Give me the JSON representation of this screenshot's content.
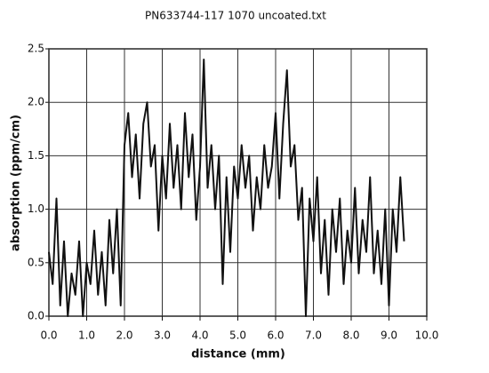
{
  "chart_data": {
    "type": "line",
    "title": "PN633744-117 1070 uncoated.txt",
    "x_label": "distance (mm)",
    "y_label": "absorption (ppm/cm)",
    "x": [
      0,
      0.1,
      0.2,
      0.3,
      0.4,
      0.5,
      0.6,
      0.7,
      0.8,
      0.9,
      1,
      1.1,
      1.2,
      1.3,
      1.4,
      1.5,
      1.6,
      1.7,
      1.8,
      1.9,
      2,
      2.1,
      2.2,
      2.3,
      2.4,
      2.5,
      2.6,
      2.7,
      2.8,
      2.9,
      3,
      3.1,
      3.2,
      3.3,
      3.4,
      3.5,
      3.6,
      3.7,
      3.8,
      3.9,
      4,
      4.1,
      4.2,
      4.3,
      4.4,
      4.5,
      4.6,
      4.7,
      4.8,
      4.9,
      5,
      5.1,
      5.2,
      5.3,
      5.4,
      5.5,
      5.6,
      5.7,
      5.8,
      5.9,
      6,
      6.1,
      6.2,
      6.3,
      6.4,
      6.5,
      6.6,
      6.7,
      6.8,
      6.9,
      7,
      7.1,
      7.2,
      7.3,
      7.4,
      7.5,
      7.6,
      7.7,
      7.8,
      7.9,
      8,
      8.1,
      8.2,
      8.3,
      8.4,
      8.5,
      8.6,
      8.7,
      8.8,
      8.9,
      9,
      9.1,
      9.2,
      9.3,
      9.4
    ],
    "values": [
      0.6,
      0.3,
      1.1,
      0.1,
      0.7,
      0.0,
      0.4,
      0.2,
      0.7,
      0.0,
      0.5,
      0.3,
      0.8,
      0.2,
      0.6,
      0.1,
      0.9,
      0.4,
      1.0,
      0.1,
      1.6,
      1.9,
      1.3,
      1.7,
      1.1,
      1.8,
      2.0,
      1.4,
      1.6,
      0.8,
      1.5,
      1.1,
      1.8,
      1.2,
      1.6,
      1.0,
      1.9,
      1.3,
      1.7,
      0.9,
      1.4,
      2.4,
      1.2,
      1.6,
      1.0,
      1.5,
      0.3,
      1.3,
      0.6,
      1.4,
      1.1,
      1.6,
      1.2,
      1.5,
      0.8,
      1.3,
      1.0,
      1.6,
      1.2,
      1.4,
      1.9,
      1.1,
      1.8,
      2.3,
      1.4,
      1.6,
      0.9,
      1.2,
      0.0,
      1.1,
      0.7,
      1.3,
      0.4,
      0.9,
      0.2,
      1.0,
      0.6,
      1.1,
      0.3,
      0.8,
      0.5,
      1.2,
      0.4,
      0.9,
      0.6,
      1.3,
      0.4,
      0.8,
      0.3,
      1.0,
      0.1,
      1.0,
      0.6,
      1.3,
      0.7
    ],
    "color": "#111111",
    "xlim": [
      0,
      10
    ],
    "xticks": [
      {
        "value": 0,
        "label": "0.0"
      },
      {
        "value": 1,
        "label": "1.0"
      },
      {
        "value": 2,
        "label": "2.0"
      },
      {
        "value": 3,
        "label": "3.0"
      },
      {
        "value": 4,
        "label": "4.0"
      },
      {
        "value": 5,
        "label": "5.0"
      },
      {
        "value": 6,
        "label": "6.0"
      },
      {
        "value": 7,
        "label": "7.0"
      },
      {
        "value": 8,
        "label": "8.0"
      },
      {
        "value": 9,
        "label": "9.0"
      },
      {
        "value": 10,
        "label": "10.0"
      }
    ],
    "ylim": [
      0,
      2.5
    ],
    "yticks": [
      {
        "value": 0,
        "label": "0.0"
      },
      {
        "value": 0.5,
        "label": "0.5"
      },
      {
        "value": 1,
        "label": "1.0"
      },
      {
        "value": 1.5,
        "label": "1.5"
      },
      {
        "value": 2,
        "label": "2.0"
      },
      {
        "value": 2.5,
        "label": "2.5"
      }
    ],
    "grid": true
  }
}
